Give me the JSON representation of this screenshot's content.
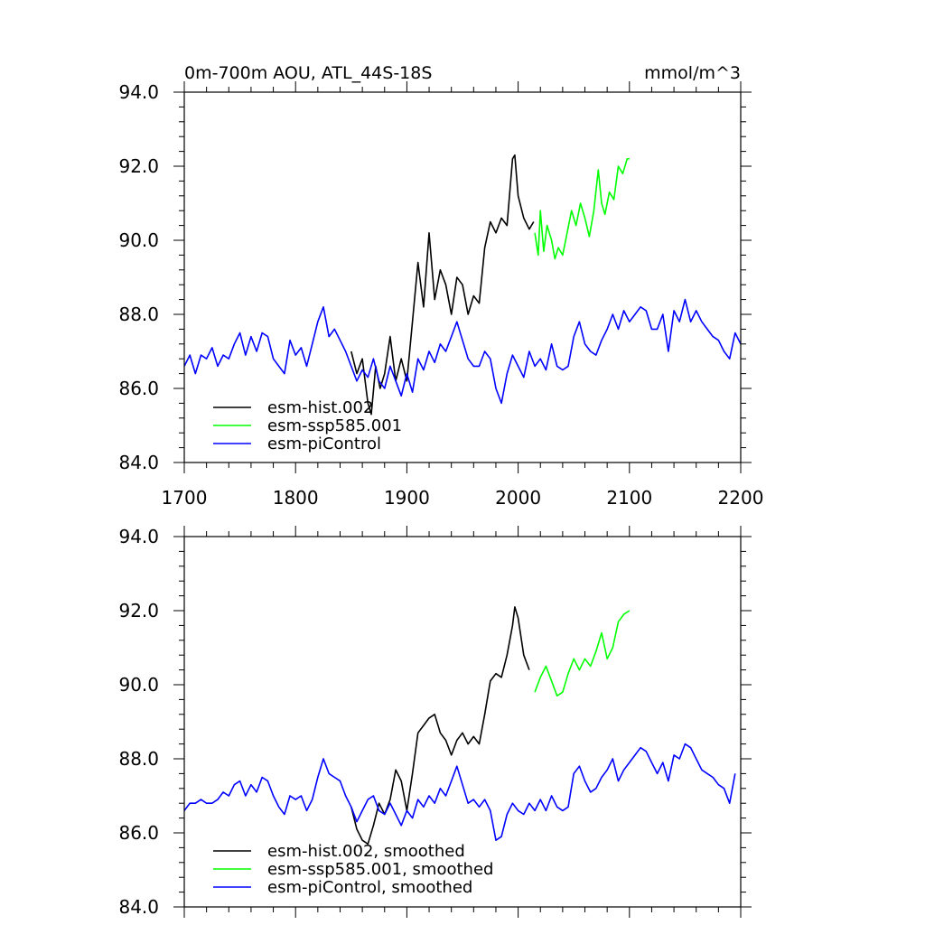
{
  "chart_data": [
    {
      "type": "line",
      "title": "0m-700m AOU, ATL_44S-18S",
      "units": "mmol/m^3",
      "xlabel": "",
      "ylabel": "",
      "xlim": [
        1700,
        2200
      ],
      "ylim": [
        84.0,
        94.0
      ],
      "xticks": [
        "1700",
        "1800",
        "1900",
        "2000",
        "2100",
        "2200"
      ],
      "yticks": [
        "84.0",
        "86.0",
        "88.0",
        "90.0",
        "92.0",
        "94.0"
      ],
      "legend_position": "bottom-left",
      "series": [
        {
          "name": "esm-hist.002",
          "color": "#000000",
          "x": [
            1850,
            1855,
            1860,
            1865,
            1868,
            1872,
            1876,
            1880,
            1885,
            1890,
            1895,
            1900,
            1905,
            1910,
            1915,
            1920,
            1925,
            1930,
            1935,
            1940,
            1945,
            1950,
            1955,
            1960,
            1965,
            1970,
            1975,
            1980,
            1985,
            1990,
            1995,
            1997,
            2000,
            2005,
            2010,
            2014
          ],
          "values": [
            87.0,
            86.4,
            86.8,
            85.6,
            85.3,
            86.6,
            86.0,
            86.4,
            87.4,
            86.2,
            86.8,
            86.2,
            87.8,
            89.4,
            88.2,
            90.2,
            88.4,
            89.2,
            88.8,
            88.0,
            89.0,
            88.8,
            88.0,
            88.5,
            88.3,
            89.8,
            90.5,
            90.2,
            90.6,
            90.4,
            92.2,
            92.3,
            91.2,
            90.6,
            90.3,
            90.5
          ]
        },
        {
          "name": "esm-ssp585.001",
          "color": "#00ff00",
          "x": [
            2015,
            2018,
            2020,
            2023,
            2026,
            2030,
            2033,
            2036,
            2040,
            2044,
            2048,
            2052,
            2056,
            2060,
            2064,
            2068,
            2072,
            2075,
            2078,
            2082,
            2086,
            2090,
            2094,
            2098,
            2100
          ],
          "values": [
            90.2,
            89.6,
            90.8,
            89.7,
            90.4,
            90.0,
            89.5,
            89.8,
            89.6,
            90.2,
            90.8,
            90.4,
            91.0,
            90.6,
            90.1,
            90.8,
            91.9,
            91.0,
            90.7,
            91.3,
            91.1,
            92.0,
            91.8,
            92.2,
            92.2
          ]
        },
        {
          "name": "esm-piControl",
          "color": "#0000ff",
          "x": [
            1700,
            1705,
            1710,
            1715,
            1720,
            1725,
            1730,
            1735,
            1740,
            1745,
            1750,
            1755,
            1760,
            1765,
            1770,
            1775,
            1780,
            1785,
            1790,
            1795,
            1800,
            1805,
            1810,
            1815,
            1820,
            1825,
            1830,
            1835,
            1840,
            1845,
            1850,
            1855,
            1860,
            1865,
            1870,
            1875,
            1880,
            1885,
            1890,
            1895,
            1900,
            1905,
            1910,
            1915,
            1920,
            1925,
            1930,
            1935,
            1940,
            1945,
            1950,
            1955,
            1960,
            1965,
            1970,
            1975,
            1980,
            1985,
            1990,
            1995,
            2000,
            2005,
            2010,
            2015,
            2020,
            2025,
            2030,
            2035,
            2040,
            2045,
            2050,
            2055,
            2060,
            2065,
            2070,
            2075,
            2080,
            2085,
            2090,
            2095,
            2100,
            2105,
            2110,
            2115,
            2120,
            2125,
            2130,
            2135,
            2140,
            2145,
            2150,
            2155,
            2160,
            2165,
            2170,
            2175,
            2180,
            2185,
            2190,
            2195,
            2200
          ],
          "values": [
            86.6,
            86.9,
            86.4,
            86.9,
            86.8,
            87.1,
            86.6,
            86.9,
            86.8,
            87.2,
            87.5,
            86.9,
            87.4,
            87.0,
            87.5,
            87.4,
            86.8,
            86.6,
            86.4,
            87.3,
            86.9,
            87.1,
            86.6,
            87.2,
            87.8,
            88.2,
            87.4,
            87.6,
            87.3,
            87.0,
            86.6,
            86.2,
            86.5,
            86.3,
            86.8,
            86.2,
            86.0,
            86.6,
            86.2,
            85.8,
            86.4,
            85.9,
            86.8,
            86.5,
            87.0,
            86.7,
            87.2,
            87.0,
            87.4,
            87.8,
            87.3,
            86.8,
            86.6,
            86.6,
            87.0,
            86.8,
            86.0,
            85.6,
            86.4,
            86.9,
            86.6,
            86.3,
            87.0,
            86.6,
            86.8,
            86.5,
            87.2,
            86.6,
            86.5,
            86.6,
            87.4,
            87.8,
            87.2,
            87.0,
            86.9,
            87.3,
            87.6,
            88.0,
            87.6,
            88.1,
            87.8,
            88.0,
            88.2,
            88.1,
            87.6,
            87.6,
            88.0,
            87.0,
            88.1,
            87.8,
            88.4,
            87.8,
            88.1,
            87.8,
            87.6,
            87.4,
            87.3,
            87.0,
            86.8,
            87.5,
            87.2
          ]
        }
      ]
    },
    {
      "type": "line",
      "title": "",
      "xlabel": "",
      "ylabel": "",
      "xlim": [
        1700,
        2200
      ],
      "ylim": [
        84.0,
        94.0
      ],
      "yticks": [
        "84.0",
        "86.0",
        "88.0",
        "90.0",
        "92.0",
        "94.0"
      ],
      "legend_position": "bottom-left",
      "series": [
        {
          "name": "esm-hist.002, smoothed",
          "color": "#000000",
          "x": [
            1850,
            1855,
            1860,
            1865,
            1870,
            1875,
            1880,
            1885,
            1890,
            1895,
            1900,
            1905,
            1910,
            1915,
            1920,
            1925,
            1930,
            1935,
            1940,
            1945,
            1950,
            1955,
            1960,
            1965,
            1970,
            1975,
            1980,
            1985,
            1990,
            1995,
            1997,
            2000,
            2005,
            2010
          ],
          "values": [
            86.7,
            86.1,
            85.8,
            85.7,
            86.2,
            86.8,
            86.5,
            86.9,
            87.7,
            87.4,
            86.6,
            87.6,
            88.7,
            88.9,
            89.1,
            89.2,
            88.7,
            88.5,
            88.1,
            88.5,
            88.7,
            88.4,
            88.6,
            88.4,
            89.2,
            90.1,
            90.3,
            90.2,
            90.8,
            91.6,
            92.1,
            91.8,
            90.8,
            90.4
          ]
        },
        {
          "name": "esm-ssp585.001, smoothed",
          "color": "#00ff00",
          "x": [
            2015,
            2020,
            2025,
            2030,
            2035,
            2040,
            2045,
            2050,
            2055,
            2060,
            2065,
            2070,
            2075,
            2080,
            2085,
            2090,
            2095,
            2100
          ],
          "values": [
            89.8,
            90.2,
            90.5,
            90.1,
            89.7,
            89.8,
            90.3,
            90.7,
            90.4,
            90.7,
            90.5,
            90.9,
            91.4,
            90.7,
            91.0,
            91.7,
            91.9,
            92.0
          ]
        },
        {
          "name": "esm-piControl, smoothed",
          "color": "#0000ff",
          "x": [
            1700,
            1705,
            1710,
            1715,
            1720,
            1725,
            1730,
            1735,
            1740,
            1745,
            1750,
            1755,
            1760,
            1765,
            1770,
            1775,
            1780,
            1785,
            1790,
            1795,
            1800,
            1805,
            1810,
            1815,
            1820,
            1825,
            1830,
            1835,
            1840,
            1845,
            1850,
            1855,
            1860,
            1865,
            1870,
            1875,
            1880,
            1885,
            1890,
            1895,
            1900,
            1905,
            1910,
            1915,
            1920,
            1925,
            1930,
            1935,
            1940,
            1945,
            1950,
            1955,
            1960,
            1965,
            1970,
            1975,
            1980,
            1985,
            1990,
            1995,
            2000,
            2005,
            2010,
            2015,
            2020,
            2025,
            2030,
            2035,
            2040,
            2045,
            2050,
            2055,
            2060,
            2065,
            2070,
            2075,
            2080,
            2085,
            2090,
            2095,
            2100,
            2105,
            2110,
            2115,
            2120,
            2125,
            2130,
            2135,
            2140,
            2145,
            2150,
            2155,
            2160,
            2165,
            2170,
            2175,
            2180,
            2185,
            2190,
            2195
          ],
          "values": [
            86.6,
            86.8,
            86.8,
            86.9,
            86.8,
            86.8,
            86.9,
            87.1,
            87.0,
            87.3,
            87.4,
            87.0,
            87.3,
            87.1,
            87.5,
            87.4,
            87.0,
            86.7,
            86.5,
            87.0,
            86.9,
            87.0,
            86.6,
            86.9,
            87.5,
            88.0,
            87.6,
            87.5,
            87.4,
            87.0,
            86.7,
            86.3,
            86.6,
            86.9,
            87.0,
            86.6,
            86.5,
            86.8,
            86.5,
            86.2,
            86.6,
            86.4,
            86.9,
            86.7,
            87.0,
            86.8,
            87.2,
            87.0,
            87.4,
            87.8,
            87.3,
            86.8,
            86.9,
            86.7,
            86.9,
            86.6,
            85.8,
            85.9,
            86.5,
            86.8,
            86.6,
            86.5,
            86.8,
            86.6,
            86.9,
            86.6,
            87.0,
            86.7,
            86.6,
            86.7,
            87.6,
            87.8,
            87.4,
            87.1,
            87.2,
            87.5,
            87.7,
            88.0,
            87.4,
            87.7,
            87.9,
            88.1,
            88.3,
            88.2,
            87.9,
            87.6,
            87.9,
            87.4,
            88.1,
            88.0,
            88.4,
            88.3,
            88.0,
            87.7,
            87.6,
            87.5,
            87.3,
            87.2,
            86.8,
            87.6
          ]
        }
      ]
    }
  ]
}
